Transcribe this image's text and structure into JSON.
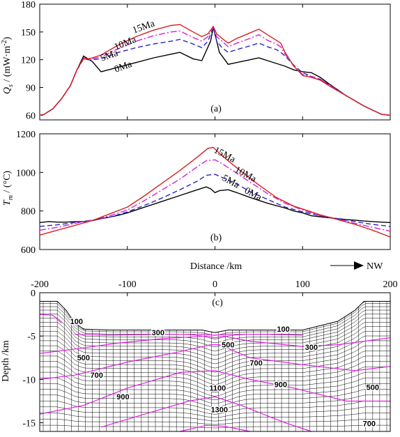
{
  "colors": {
    "15Ma": "#d42020",
    "10Ma": "#d61fd6",
    "5Ma": "#2424c8",
    "0Ma": "#000000",
    "contour": "#e020e0",
    "grid": "#000000"
  },
  "chart_data": [
    {
      "type": "line",
      "panel_label": "(a)",
      "ylabel_main": "Q",
      "ylabel_sub": "s",
      "ylabel_unit": " / (mW·m",
      "ylabel_exp": "-2",
      "ylabel_close": ")",
      "xlim": [
        -200,
        200
      ],
      "ylim": [
        55,
        180
      ],
      "yticks": [
        "60",
        "90",
        "120",
        "150",
        "180"
      ],
      "series": [
        {
          "name": "0Ma",
          "color_key": "0Ma",
          "dash": "solid",
          "x": [
            -200,
            -195,
            -185,
            -175,
            -165,
            -158,
            -150,
            -145,
            -140,
            -130,
            -110,
            -90,
            -70,
            -50,
            -40,
            -25,
            -15,
            -5,
            -2,
            2,
            5,
            15,
            25,
            40,
            50,
            60,
            70,
            80,
            90,
            100,
            110,
            120,
            130,
            150,
            170,
            190,
            200
          ],
          "y": [
            60,
            61,
            67,
            78,
            92,
            108,
            124,
            121,
            118,
            107,
            112,
            117,
            122,
            126,
            128,
            121,
            119,
            140,
            155,
            140,
            128,
            115,
            117,
            120,
            122,
            119,
            116,
            113,
            109,
            107,
            106,
            101,
            94,
            81,
            70,
            61,
            60
          ]
        },
        {
          "name": "5Ma",
          "color_key": "5Ma",
          "dash": "dash",
          "x": [
            -200,
            -195,
            -185,
            -175,
            -165,
            -158,
            -150,
            -145,
            -140,
            -130,
            -110,
            -90,
            -70,
            -50,
            -40,
            -25,
            -15,
            -8,
            -2,
            2,
            8,
            15,
            25,
            40,
            50,
            60,
            70,
            75,
            80,
            90,
            100,
            110,
            120,
            130,
            150,
            170,
            190,
            200
          ],
          "y": [
            60,
            61,
            67,
            78,
            92,
            108,
            121,
            120,
            120,
            121,
            128,
            133,
            137,
            140,
            142,
            137,
            133,
            140,
            155,
            140,
            133,
            128,
            131,
            135,
            138,
            134,
            131,
            128,
            124,
            114,
            106,
            102,
            99,
            93,
            81,
            70,
            61,
            60
          ]
        },
        {
          "name": "10Ma",
          "color_key": "10Ma",
          "dash": "dashdot",
          "x": [
            -200,
            -195,
            -185,
            -175,
            -165,
            -158,
            -150,
            -145,
            -140,
            -130,
            -110,
            -90,
            -70,
            -50,
            -40,
            -25,
            -15,
            -8,
            -2,
            2,
            8,
            15,
            25,
            40,
            50,
            60,
            70,
            75,
            80,
            90,
            100,
            110,
            120,
            130,
            150,
            170,
            190,
            200
          ],
          "y": [
            60,
            61,
            67,
            78,
            92,
            108,
            121,
            120,
            121,
            123,
            132,
            140,
            146,
            150,
            151,
            144,
            140,
            145,
            155,
            145,
            140,
            134,
            138,
            143,
            147,
            141,
            137,
            134,
            126,
            113,
            104,
            102,
            99,
            93,
            81,
            70,
            61,
            60
          ]
        },
        {
          "name": "15Ma",
          "color_key": "15Ma",
          "dash": "solid",
          "x": [
            -200,
            -195,
            -185,
            -175,
            -165,
            -158,
            -150,
            -145,
            -140,
            -130,
            -110,
            -90,
            -70,
            -50,
            -40,
            -25,
            -15,
            -8,
            -2,
            2,
            8,
            15,
            25,
            40,
            50,
            60,
            70,
            75,
            80,
            90,
            100,
            110,
            120,
            130,
            150,
            170,
            190,
            200
          ],
          "y": [
            60,
            61,
            67,
            78,
            92,
            108,
            122,
            121,
            122,
            125,
            136,
            145,
            152,
            157,
            158,
            150,
            145,
            148,
            156,
            148,
            143,
            138,
            143,
            149,
            153,
            147,
            141,
            138,
            128,
            113,
            103,
            101,
            98,
            92,
            81,
            70,
            61,
            60
          ]
        }
      ],
      "annotations": [
        "15Ma",
        "10Ma",
        "5Ma",
        "0Ma"
      ]
    },
    {
      "type": "line",
      "panel_label": "(b)",
      "ylabel_main": "T",
      "ylabel_sub": "m",
      "ylabel_unit": " / (°C)",
      "xlim": [
        -200,
        200
      ],
      "ylim": [
        600,
        1200
      ],
      "yticks": [
        "600",
        "800",
        "1000",
        "1200"
      ],
      "xlabel": "Distance /km",
      "direction_label": "NW",
      "series": [
        {
          "name": "0Ma",
          "color_key": "0Ma",
          "dash": "solid",
          "x": [
            -200,
            -190,
            -180,
            -170,
            -160,
            -150,
            -140,
            -130,
            -120,
            -110,
            -100,
            -80,
            -60,
            -40,
            -20,
            -10,
            -5,
            0,
            5,
            15,
            25,
            40,
            60,
            80,
            90,
            100,
            110,
            120,
            130,
            140,
            150,
            160,
            170,
            180,
            190,
            200
          ],
          "y": [
            740,
            745,
            742,
            742,
            745,
            745,
            750,
            760,
            768,
            778,
            790,
            820,
            850,
            880,
            910,
            925,
            915,
            895,
            905,
            910,
            895,
            870,
            840,
            815,
            800,
            790,
            775,
            770,
            765,
            760,
            755,
            752,
            748,
            745,
            742,
            740
          ]
        },
        {
          "name": "5Ma",
          "color_key": "5Ma",
          "dash": "dash",
          "x": [
            -200,
            -180,
            -160,
            -140,
            -120,
            -100,
            -80,
            -60,
            -40,
            -20,
            -10,
            0,
            10,
            25,
            40,
            60,
            80,
            100,
            120,
            140,
            160,
            180,
            200
          ],
          "y": [
            720,
            728,
            740,
            752,
            768,
            795,
            830,
            868,
            910,
            955,
            985,
            990,
            970,
            940,
            900,
            860,
            820,
            795,
            775,
            760,
            745,
            730,
            720
          ]
        },
        {
          "name": "10Ma",
          "color_key": "10Ma",
          "dash": "dashdot",
          "x": [
            -200,
            -180,
            -160,
            -140,
            -120,
            -100,
            -80,
            -60,
            -40,
            -20,
            -10,
            0,
            10,
            25,
            40,
            60,
            80,
            100,
            120,
            140,
            160,
            180,
            200
          ],
          "y": [
            700,
            715,
            735,
            752,
            775,
            805,
            855,
            910,
            965,
            1030,
            1060,
            1065,
            1040,
            995,
            950,
            890,
            840,
            805,
            775,
            758,
            735,
            715,
            695
          ]
        },
        {
          "name": "15Ma",
          "color_key": "15Ma",
          "dash": "solid",
          "x": [
            -200,
            -180,
            -160,
            -140,
            -120,
            -100,
            -80,
            -60,
            -40,
            -20,
            -8,
            -2,
            5,
            15,
            30,
            50,
            70,
            90,
            100,
            120,
            140,
            160,
            180,
            200
          ],
          "y": [
            675,
            700,
            725,
            750,
            785,
            820,
            880,
            945,
            1010,
            1080,
            1125,
            1130,
            1100,
            1060,
            1005,
            935,
            870,
            825,
            810,
            780,
            755,
            730,
            700,
            665
          ]
        }
      ],
      "annotations": [
        "15Ma",
        "10Ma",
        "5Ma",
        "0Ma"
      ]
    },
    {
      "type": "contour",
      "panel_label": "(c)",
      "ylabel": "Depth /km",
      "xlim": [
        -200,
        200
      ],
      "ylim": [
        -16,
        0
      ],
      "xticks": [
        "-200",
        "-100",
        "0",
        "100",
        "200"
      ],
      "yticks": [
        "0",
        "-5",
        "-10",
        "-15"
      ],
      "contour_labels": [
        "100",
        "300",
        "100",
        "500",
        "300",
        "500",
        "700",
        "700",
        "900",
        "500",
        "900",
        "1100",
        "1300",
        "700"
      ]
    }
  ]
}
